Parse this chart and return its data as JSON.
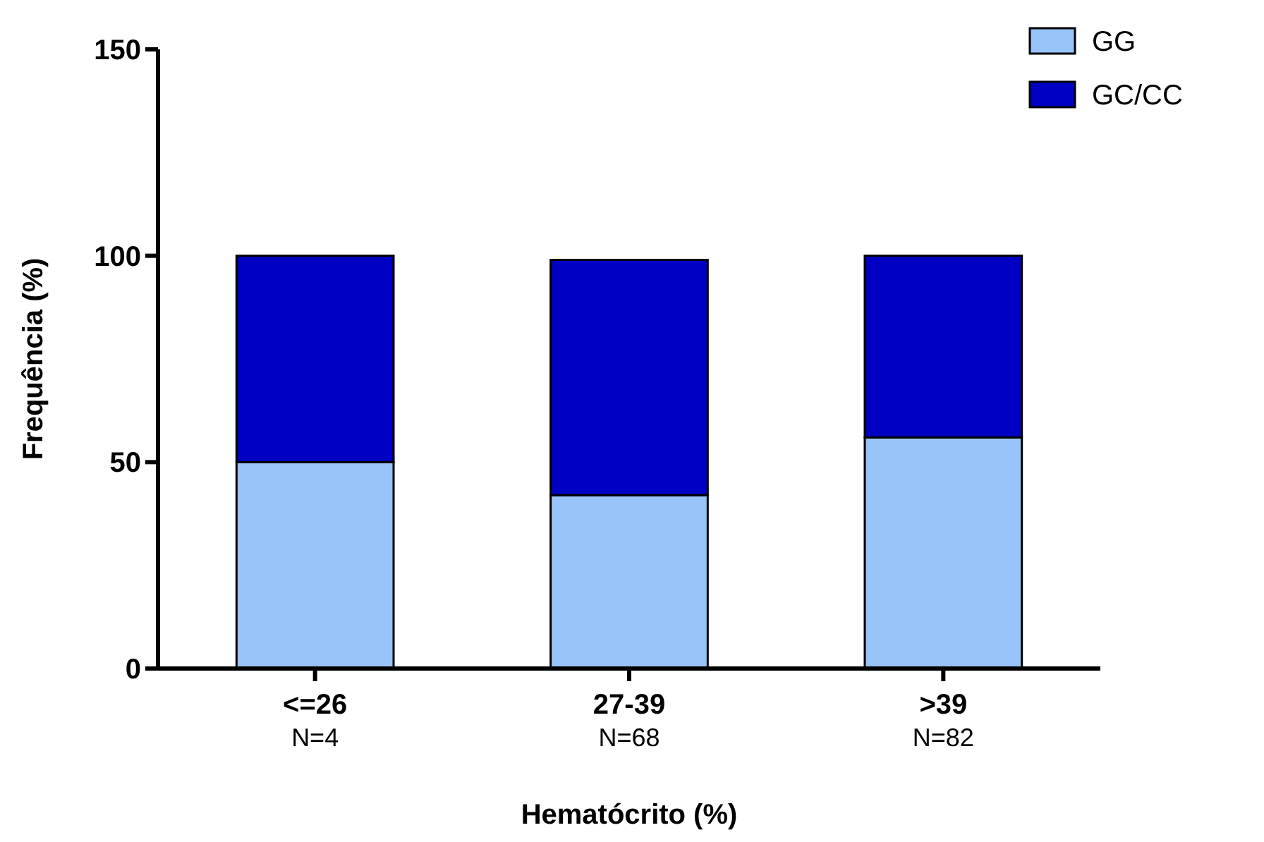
{
  "chart_data": {
    "type": "bar",
    "stacked": true,
    "xlabel": "Hematócrito (%)",
    "ylabel": "Frequência (%)",
    "categories": [
      "<=26\nN=4",
      "27-39\nN=68",
      ">39\nN=82"
    ],
    "series": [
      {
        "name": "GG",
        "color": "#99c4fa",
        "values": [
          50,
          42,
          56
        ]
      },
      {
        "name": "GC/CC",
        "color": "#0000c4",
        "values": [
          50,
          57,
          44
        ]
      }
    ],
    "ylim": [
      0,
      150
    ],
    "yticks": [
      0,
      50,
      100,
      150
    ],
    "legend": "top right",
    "grid": false
  }
}
